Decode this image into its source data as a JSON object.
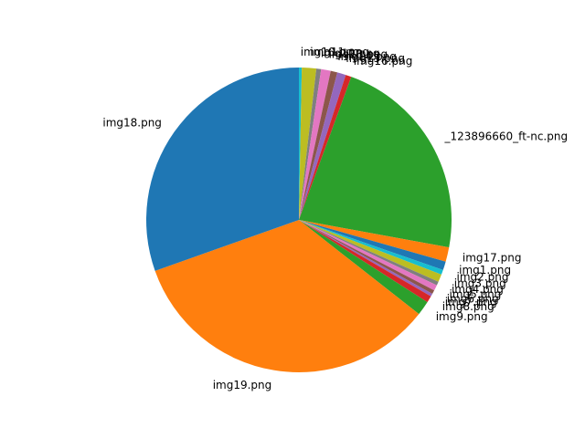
{
  "chart_data": {
    "type": "pie",
    "title": "",
    "start_angle_deg": 90,
    "direction": "clockwise",
    "slices": [
      {
        "label": "img10.png",
        "value": 0.3,
        "color": "#17becf"
      },
      {
        "label": "img11.png",
        "value": 1.5,
        "color": "#bcbd22"
      },
      {
        "label": "img12.png",
        "value": 0.5,
        "color": "#7f7f7f"
      },
      {
        "label": "img13.png",
        "value": 1.0,
        "color": "#e377c2"
      },
      {
        "label": "img14.png",
        "value": 0.7,
        "color": "#8c564b"
      },
      {
        "label": "img15.png",
        "value": 0.9,
        "color": "#9467bd"
      },
      {
        "label": "img16.png",
        "value": 0.6,
        "color": "#d62728"
      },
      {
        "label": "_123896660_ft-nc.png",
        "value": 22.0,
        "color": "#2ca02c"
      },
      {
        "label": "img17.png",
        "value": 1.5,
        "color": "#ff7f0e"
      },
      {
        "label": "img1.png",
        "value": 0.9,
        "color": "#1f77b4"
      },
      {
        "label": "img2.png",
        "value": 0.5,
        "color": "#17becf"
      },
      {
        "label": "img3.png",
        "value": 0.8,
        "color": "#bcbd22"
      },
      {
        "label": "img4.png",
        "value": 0.4,
        "color": "#7f7f7f"
      },
      {
        "label": "img5.png",
        "value": 0.6,
        "color": "#e377c2"
      },
      {
        "label": "img6.png",
        "value": 0.4,
        "color": "#8c564b"
      },
      {
        "label": "img7.png",
        "value": 0.3,
        "color": "#9467bd"
      },
      {
        "label": "img8.png",
        "value": 0.7,
        "color": "#d62728"
      },
      {
        "label": "img9.png",
        "value": 1.5,
        "color": "#2ca02c"
      },
      {
        "label": "img19.png",
        "value": 33.5,
        "color": "#ff7f0e"
      },
      {
        "label": "img18.png",
        "value": 30.0,
        "color": "#1f77b4"
      }
    ]
  }
}
